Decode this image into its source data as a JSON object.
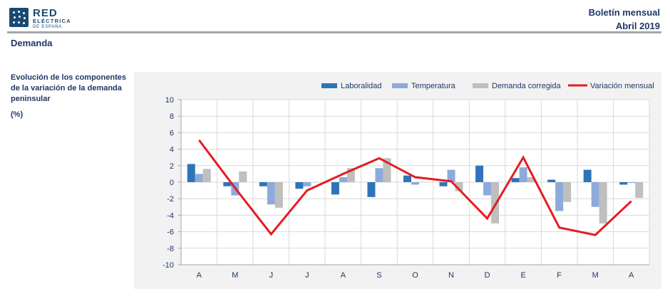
{
  "header": {
    "logo_text": "RED",
    "logo_sub1": "ELÉCTRICA",
    "logo_sub2": "DE ESPAÑA",
    "bulletin": "Boletín mensual",
    "date": "Abril 2019"
  },
  "section_title": "Demanda",
  "side": {
    "title": "Evolución de los componentes de la variación de la demanda peninsular",
    "unit": "(%)"
  },
  "colors": {
    "laboralidad": "#2e75b6",
    "temperatura": "#8eaadb",
    "demanda": "#bfbfbf",
    "variacion": "#e31c23"
  },
  "chart_data": {
    "type": "bar",
    "categories": [
      "A",
      "M",
      "J",
      "J",
      "A",
      "S",
      "O",
      "N",
      "D",
      "E",
      "F",
      "M",
      "A"
    ],
    "ylim": [
      -10,
      10
    ],
    "yticks": [
      10,
      8,
      6,
      4,
      2,
      0,
      -2,
      -4,
      -6,
      -8,
      -10
    ],
    "series": [
      {
        "name": "Laboralidad",
        "type": "bar",
        "values": [
          2.2,
          -0.5,
          -0.5,
          -0.8,
          -1.5,
          -1.8,
          0.8,
          -0.5,
          2.0,
          0.5,
          0.3,
          1.5,
          -0.3
        ]
      },
      {
        "name": "Temperatura",
        "type": "bar",
        "values": [
          1.0,
          -1.6,
          -2.7,
          -0.5,
          0.6,
          1.7,
          -0.3,
          1.5,
          -1.6,
          1.8,
          -3.5,
          -3.0,
          -0.1
        ]
      },
      {
        "name": "Demanda corregida",
        "type": "bar",
        "values": [
          1.6,
          1.3,
          -3.1,
          0.0,
          1.7,
          2.9,
          0.0,
          -1.1,
          -5.0,
          0.6,
          -2.4,
          -5.0,
          -1.9
        ]
      },
      {
        "name": "Variación mensual",
        "type": "line",
        "values": [
          5.1,
          -0.7,
          -6.3,
          -1.0,
          1.0,
          2.9,
          0.6,
          0.1,
          -4.4,
          3.0,
          -5.5,
          -6.4,
          -2.3
        ]
      }
    ]
  }
}
